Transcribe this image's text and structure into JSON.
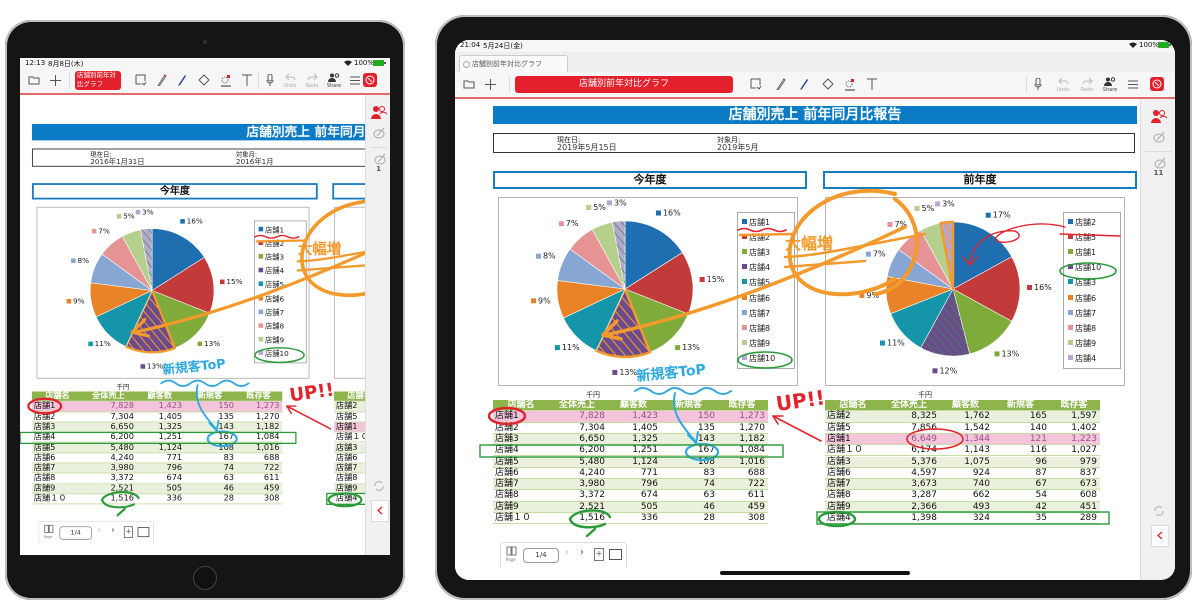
{
  "devices": [
    {
      "status": {
        "time": "12:13",
        "date": "8月8日(木)",
        "battery": "100%"
      },
      "toolbar": {
        "title": "店舗別前年対比グラフ",
        "undo": "Undo",
        "redo": "Redo",
        "share": "Share"
      },
      "sidebar": {
        "count": "1"
      },
      "pager": {
        "label": "Page",
        "value": "1/4"
      },
      "report": {
        "current_date_label": "現在日:",
        "current_date": "2016年1月31日",
        "target_month_label": "対象月:",
        "target_month": "2016年1月"
      }
    },
    {
      "status": {
        "time": "21:04",
        "date": "5月24日(金)",
        "battery": "100%"
      },
      "tab": {
        "label": "店舗別前年対比グラフ"
      },
      "toolbar": {
        "title": "店舗別前年対比グラフ",
        "undo": "Undo",
        "redo": "Redo",
        "share": "Share"
      },
      "sidebar": {
        "count": "11"
      },
      "pager": {
        "label": "Page",
        "value": "1/4"
      },
      "report": {
        "current_date_label": "現在日:",
        "current_date": "2019年5月15日",
        "target_month_label": "対象月:",
        "target_month": "2019年5月"
      }
    }
  ],
  "report": {
    "title": "店舗別売上 前年同月比報告",
    "unit": "千円",
    "columns": [
      "店舗名",
      "全体売上",
      "顧客数",
      "新規客",
      "既存客"
    ],
    "this_year": {
      "heading": "今年度",
      "highlight": "店舗1",
      "rows": [
        [
          "店舗1",
          "7,828",
          "1,423",
          "150",
          "1,273"
        ],
        [
          "店舗2",
          "7,304",
          "1,405",
          "135",
          "1,270"
        ],
        [
          "店舗3",
          "6,650",
          "1,325",
          "143",
          "1,182"
        ],
        [
          "店舗4",
          "6,200",
          "1,251",
          "167",
          "1,084"
        ],
        [
          "店舗5",
          "5,480",
          "1,124",
          "108",
          "1,016"
        ],
        [
          "店舗6",
          "4,240",
          "771",
          "83",
          "688"
        ],
        [
          "店舗7",
          "3,980",
          "796",
          "74",
          "722"
        ],
        [
          "店舗8",
          "3,372",
          "674",
          "63",
          "611"
        ],
        [
          "店舗9",
          "2,521",
          "505",
          "46",
          "459"
        ],
        [
          "店舗１０",
          "1,516",
          "336",
          "28",
          "308"
        ]
      ]
    },
    "last_year": {
      "heading": "前年度",
      "highlight": "店舗1",
      "rows": [
        [
          "店舗2",
          "8,325",
          "1,762",
          "165",
          "1,597"
        ],
        [
          "店舗5",
          "7,856",
          "1,542",
          "140",
          "1,402"
        ],
        [
          "店舗1",
          "6,649",
          "1,344",
          "121",
          "1,223"
        ],
        [
          "店舗１０",
          "6,174",
          "1,143",
          "116",
          "1,027"
        ],
        [
          "店舗3",
          "5,376",
          "1,075",
          "96",
          "979"
        ],
        [
          "店舗6",
          "4,597",
          "924",
          "87",
          "837"
        ],
        [
          "店舗7",
          "3,673",
          "740",
          "67",
          "673"
        ],
        [
          "店舗8",
          "3,287",
          "662",
          "54",
          "608"
        ],
        [
          "店舗9",
          "2,366",
          "493",
          "42",
          "451"
        ],
        [
          "店舗4",
          "1,398",
          "324",
          "35",
          "289"
        ]
      ]
    }
  },
  "chart_data": [
    {
      "type": "pie",
      "categories": [
        "店舗1",
        "店舗2",
        "店舗3",
        "店舗4",
        "店舗5",
        "店舗6",
        "店舗7",
        "店舗8",
        "店舗9",
        "店舗10"
      ],
      "values": [
        16,
        15,
        13,
        13,
        11,
        9,
        8,
        7,
        5,
        3
      ],
      "labels": [
        "16%",
        "15%",
        "13%",
        "13%",
        "11%",
        "9%",
        "8%",
        "7%",
        "5%",
        "3%"
      ],
      "legend": "right"
    },
    {
      "type": "pie",
      "categories": [
        "店舗2",
        "店舗5",
        "店舗1",
        "店舗10",
        "店舗3",
        "店舗6",
        "店舗7",
        "店舗8",
        "店舗9",
        "店舗4"
      ],
      "values": [
        17,
        16,
        13,
        12,
        11,
        9,
        7,
        7,
        5,
        3
      ],
      "labels": [
        "17%",
        "16%",
        "13%",
        "12%",
        "11%",
        "9%",
        "7%",
        "7%",
        "5%",
        "3%"
      ],
      "legend": "right"
    }
  ],
  "annotations": {
    "big_increase": "大幅増",
    "new_customers_top": "新規客ToP",
    "up": "UP!!"
  },
  "colors": {
    "slices": [
      "#1f6fb0",
      "#c33a3a",
      "#7fab3a",
      "#6b4a8e",
      "#1595a9",
      "#ea8228",
      "#87a6d4",
      "#e59393",
      "#b4d08c",
      "#b7a6cf"
    ],
    "brand_red": "#e3202b",
    "title_blue": "#0a7bc4",
    "table_header": "#8db54b",
    "row_tint": "#e9f1dd",
    "highlight_row": "#f3c4da",
    "ink_orange": "#f39a2c",
    "ink_blue": "#2fa8e0",
    "ink_red": "#e2242a",
    "ink_green": "#2a9a3a"
  },
  "icons": [
    "folder-icon",
    "plus-icon",
    "lasso-select-icon",
    "pencil-icon",
    "pen-icon",
    "eraser-icon",
    "laser-pointer-icon",
    "text-icon",
    "microphone-icon",
    "undo-icon",
    "redo-icon",
    "share-icon",
    "menu-icon",
    "app-icon",
    "users-icon",
    "pen-edit-icon",
    "sync-icon",
    "chevron-left-icon",
    "page-icon",
    "wifi-icon",
    "battery-icon"
  ]
}
